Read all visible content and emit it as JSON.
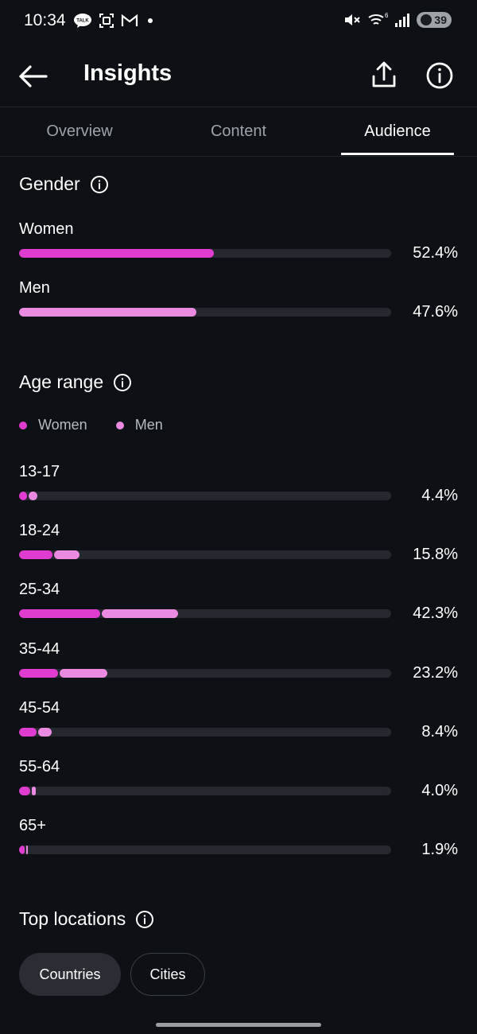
{
  "status_bar": {
    "time": "10:34",
    "talk_badge": "TALK",
    "network_badge": "6",
    "battery_level": "39"
  },
  "header": {
    "title": "Insights",
    "back_icon": "arrow-left-icon",
    "share_icon": "share-icon",
    "info_icon": "info-icon"
  },
  "tabs": [
    {
      "label": "Overview",
      "active": false
    },
    {
      "label": "Content",
      "active": false
    },
    {
      "label": "Audience",
      "active": true
    }
  ],
  "colors": {
    "women": "#e03cd0",
    "men": "#ea8ae0",
    "track": "#25282e",
    "background": "#0d1014"
  },
  "gender": {
    "title": "Gender",
    "rows": [
      {
        "label": "Women",
        "value": 52.4,
        "display": "52.4%"
      },
      {
        "label": "Men",
        "value": 47.6,
        "display": "47.6%"
      }
    ]
  },
  "age_range": {
    "title": "Age range",
    "legend": {
      "women": "Women",
      "men": "Men"
    },
    "rows": [
      {
        "label": "13-17",
        "total": 4.4,
        "women": 2.1,
        "men": 2.3,
        "display": "4.4%"
      },
      {
        "label": "18-24",
        "total": 15.8,
        "women": 8.9,
        "men": 6.9,
        "display": "15.8%"
      },
      {
        "label": "25-34",
        "total": 42.3,
        "women": 21.9,
        "men": 20.4,
        "display": "42.3%"
      },
      {
        "label": "35-44",
        "total": 23.2,
        "women": 10.5,
        "men": 12.7,
        "display": "23.2%"
      },
      {
        "label": "45-54",
        "total": 8.4,
        "women": 4.7,
        "men": 3.7,
        "display": "8.4%"
      },
      {
        "label": "55-64",
        "total": 4.0,
        "women": 3.0,
        "men": 1.0,
        "display": "4.0%"
      },
      {
        "label": "65+",
        "total": 1.9,
        "women": 1.5,
        "men": 0.4,
        "display": "1.9%"
      }
    ]
  },
  "top_locations": {
    "title": "Top locations",
    "filters": [
      {
        "label": "Countries",
        "selected": true
      },
      {
        "label": "Cities",
        "selected": false
      }
    ]
  }
}
